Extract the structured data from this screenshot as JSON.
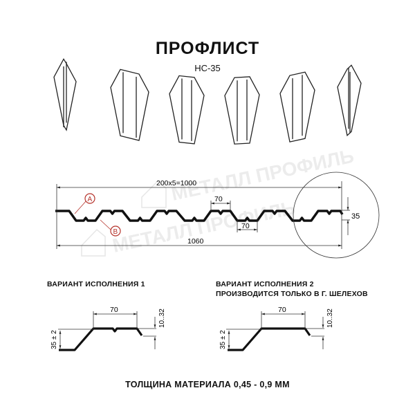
{
  "title": "ПРОФЛИСТ",
  "subtitle": "НС-35",
  "watermark": "МЕТАЛЛ ПРОФИЛЬ",
  "profile": {
    "dim_pitch": "200х5=1000",
    "dim_top": "70",
    "dim_bottom": "70",
    "dim_height": "35",
    "dim_total": "1060",
    "marker_a": "A",
    "marker_b": "B",
    "marker_color": "#b5322a"
  },
  "variant1": {
    "caption": "ВАРИАНТ ИСПОЛНЕНИЯ 1",
    "dim_width": "70",
    "dim_height": "35 ± 2",
    "dim_offset": "10..32"
  },
  "variant2": {
    "caption": "ВАРИАНТ ИСПОЛНЕНИЯ 2",
    "caption2": "ПРОИЗВОДИТСЯ ТОЛЬКО В Г. ШЕЛЕХОВ",
    "dim_width": "70",
    "dim_height": "35 ± 2",
    "dim_offset": "10..32"
  },
  "footer": "ТОЛЩИНА МАТЕРИАЛА 0,45 - 0,9 ММ"
}
